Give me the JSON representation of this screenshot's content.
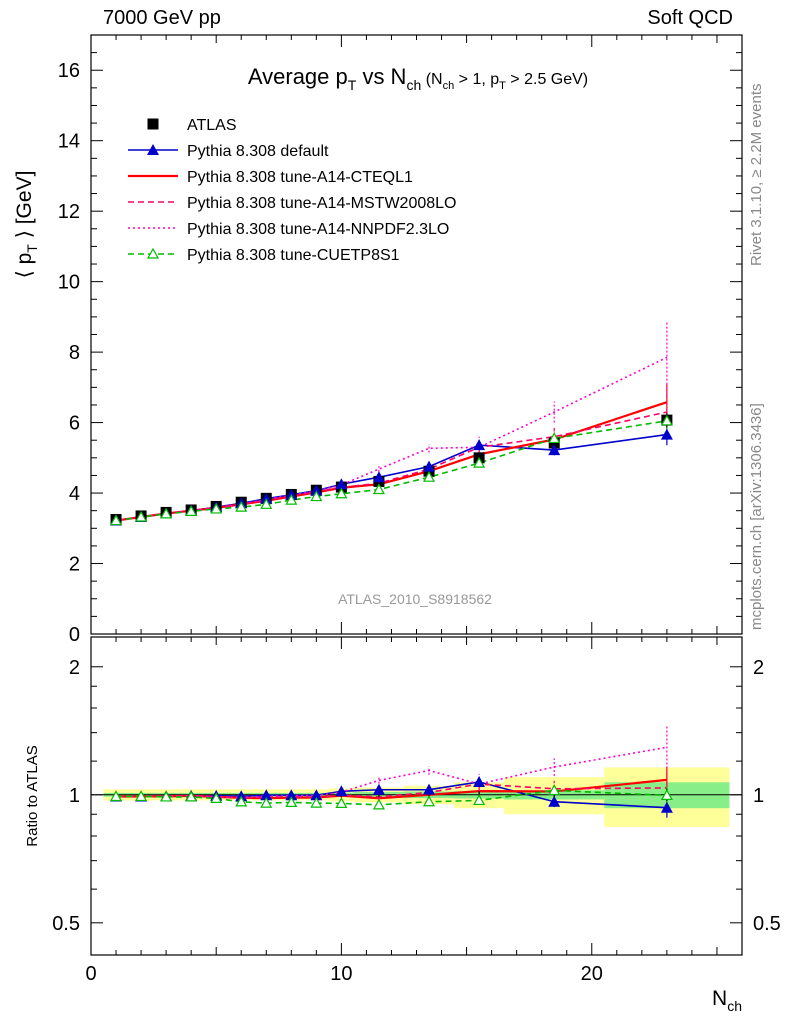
{
  "header": {
    "left": "7000 GeV pp",
    "right": "Soft QCD"
  },
  "side_labels": {
    "rivet": "Rivet 3.1.10, ≥ 2.2M events",
    "mcplots": "mcplots.cern.ch [arXiv:1306.3436]"
  },
  "chart_data": [
    {
      "type": "scatter",
      "panel": "main",
      "title": {
        "main": "Average p",
        "main_sub": "T",
        "mid": " vs N",
        "mid_sub": "ch",
        "cond_open": " (N",
        "cond_sub1": "ch",
        "cond_mid": " > 1, p",
        "cond_sub2": "T",
        "cond_close": " > 2.5 GeV)"
      },
      "ylabel": {
        "open": "⟨ p",
        "sub": "T",
        "close": " ⟩  [GeV]"
      },
      "watermark": "ATLAS_2010_S8918562",
      "xlim": [
        0,
        26
      ],
      "ylim": [
        0,
        17
      ],
      "yticks": [
        0,
        2,
        4,
        6,
        8,
        10,
        12,
        14,
        16
      ],
      "x": [
        1,
        2,
        3,
        4,
        5,
        6,
        7,
        8,
        9,
        10,
        11.5,
        13.5,
        15.5,
        18.5,
        23
      ],
      "series": [
        {
          "name": "ATLAS",
          "color": "#000000",
          "style": "data",
          "values": [
            3.25,
            3.35,
            3.45,
            3.52,
            3.62,
            3.74,
            3.85,
            3.96,
            4.08,
            4.17,
            4.33,
            4.62,
            5.0,
            5.42,
            6.07
          ],
          "errors": [
            0.02,
            0.02,
            0.02,
            0.02,
            0.02,
            0.03,
            0.03,
            0.03,
            0.04,
            0.05,
            0.06,
            0.08,
            0.1,
            0.13,
            0.2
          ]
        },
        {
          "name": "Pythia 8.308 default",
          "color": "#0000cc",
          "style": "solid-triangle",
          "values": [
            3.22,
            3.32,
            3.42,
            3.5,
            3.6,
            3.71,
            3.84,
            3.95,
            4.07,
            4.25,
            4.45,
            4.75,
            5.36,
            5.22,
            5.66
          ],
          "errors": [
            0.02,
            0.02,
            0.02,
            0.02,
            0.02,
            0.03,
            0.03,
            0.03,
            0.04,
            0.05,
            0.06,
            0.1,
            0.15,
            0.15,
            0.3
          ]
        },
        {
          "name": "Pythia 8.308 tune-A14-CTEQL1",
          "color": "#ff0000",
          "style": "solid",
          "values": [
            3.22,
            3.32,
            3.42,
            3.5,
            3.58,
            3.68,
            3.78,
            3.9,
            4.02,
            4.15,
            4.25,
            4.62,
            5.1,
            5.52,
            6.58
          ],
          "errors": [
            0.02,
            0.02,
            0.02,
            0.02,
            0.02,
            0.03,
            0.03,
            0.03,
            0.04,
            0.05,
            0.06,
            0.1,
            0.15,
            0.2,
            0.5
          ]
        },
        {
          "name": "Pythia 8.308 tune-A14-MSTW2008LO",
          "color": "#ff0066",
          "style": "dashed",
          "values": [
            3.22,
            3.32,
            3.42,
            3.5,
            3.58,
            3.68,
            3.8,
            3.92,
            4.03,
            4.16,
            4.28,
            4.68,
            5.3,
            5.6,
            6.3
          ],
          "errors": [
            0.02,
            0.02,
            0.02,
            0.02,
            0.02,
            0.03,
            0.03,
            0.03,
            0.04,
            0.05,
            0.06,
            0.1,
            0.15,
            0.25,
            0.6
          ]
        },
        {
          "name": "Pythia 8.308 tune-A14-NNPDF2.3LO",
          "color": "#ff00cc",
          "style": "dotted",
          "values": [
            3.22,
            3.32,
            3.42,
            3.5,
            3.58,
            3.69,
            3.82,
            3.94,
            4.06,
            4.23,
            4.68,
            5.27,
            5.3,
            6.3,
            7.85
          ],
          "errors": [
            0.02,
            0.02,
            0.02,
            0.02,
            0.02,
            0.03,
            0.03,
            0.03,
            0.04,
            0.05,
            0.08,
            0.12,
            0.3,
            0.3,
            1.0
          ]
        },
        {
          "name": "Pythia 8.308 tune-CUETP8S1",
          "color": "#00bb00",
          "style": "dashed-open-triangle",
          "values": [
            3.22,
            3.32,
            3.41,
            3.48,
            3.55,
            3.6,
            3.68,
            3.8,
            3.9,
            3.98,
            4.1,
            4.45,
            4.85,
            5.55,
            6.05
          ],
          "errors": [
            0.02,
            0.02,
            0.02,
            0.02,
            0.02,
            0.03,
            0.03,
            0.03,
            0.04,
            0.05,
            0.06,
            0.1,
            0.12,
            0.2,
            0.3
          ]
        }
      ]
    },
    {
      "type": "scatter",
      "panel": "ratio",
      "ylabel": "Ratio to ATLAS",
      "scale": "log",
      "ylim": [
        0.42,
        2.35
      ],
      "yticks": [
        0.5,
        1,
        2
      ],
      "ytick_labels": [
        "0.5",
        "1",
        "2"
      ],
      "xticks": [
        0,
        10,
        20
      ],
      "xlabel": {
        "main": "N",
        "sub": "ch"
      },
      "bands": {
        "inner_color": "#88ee88",
        "outer_color": "#ffff99",
        "bins": [
          {
            "x0": 0.5,
            "x1": 1.5,
            "inner": 0.01,
            "outer": 0.03
          },
          {
            "x0": 1.5,
            "x1": 2.5,
            "inner": 0.01,
            "outer": 0.03
          },
          {
            "x0": 2.5,
            "x1": 3.5,
            "inner": 0.01,
            "outer": 0.03
          },
          {
            "x0": 3.5,
            "x1": 4.5,
            "inner": 0.01,
            "outer": 0.03
          },
          {
            "x0": 4.5,
            "x1": 5.5,
            "inner": 0.01,
            "outer": 0.03
          },
          {
            "x0": 5.5,
            "x1": 6.5,
            "inner": 0.01,
            "outer": 0.03
          },
          {
            "x0": 6.5,
            "x1": 7.5,
            "inner": 0.01,
            "outer": 0.03
          },
          {
            "x0": 7.5,
            "x1": 8.5,
            "inner": 0.01,
            "outer": 0.03
          },
          {
            "x0": 8.5,
            "x1": 9.5,
            "inner": 0.01,
            "outer": 0.03
          },
          {
            "x0": 9.5,
            "x1": 10.5,
            "inner": 0.012,
            "outer": 0.035
          },
          {
            "x0": 10.5,
            "x1": 12.5,
            "inner": 0.015,
            "outer": 0.04
          },
          {
            "x0": 12.5,
            "x1": 14.5,
            "inner": 0.018,
            "outer": 0.05
          },
          {
            "x0": 14.5,
            "x1": 16.5,
            "inner": 0.02,
            "outer": 0.07
          },
          {
            "x0": 16.5,
            "x1": 20.5,
            "inner": 0.025,
            "outer": 0.1
          },
          {
            "x0": 20.5,
            "x1": 25.5,
            "inner": 0.07,
            "outer": 0.16
          }
        ]
      }
    }
  ]
}
